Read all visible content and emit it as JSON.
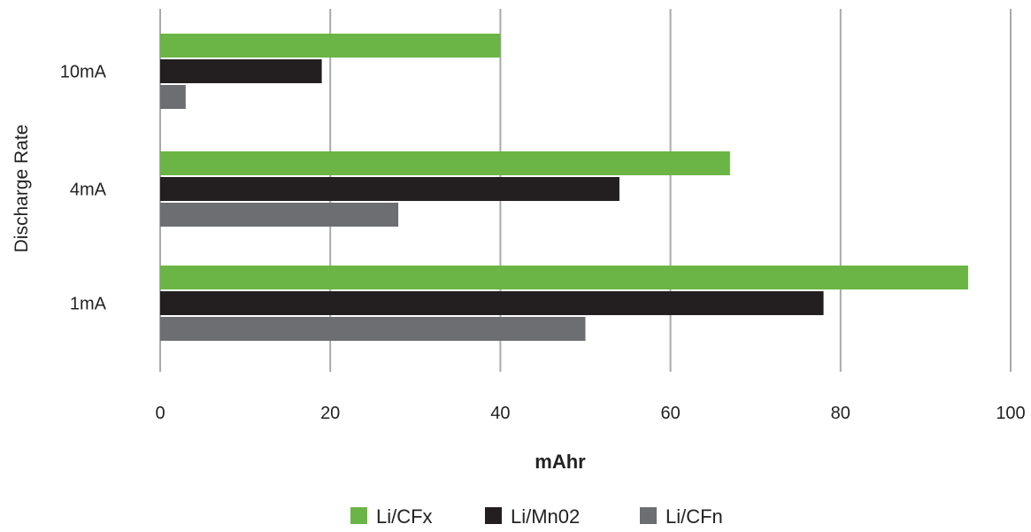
{
  "chart_data": {
    "type": "bar",
    "orientation": "horizontal",
    "title": "",
    "xlabel": "mAhr",
    "ylabel": "Discharge Rate",
    "xlim": [
      0,
      100
    ],
    "x_ticks": [
      "0",
      "20",
      "40",
      "60",
      "80",
      "100"
    ],
    "grid": "vertical",
    "legend_position": "bottom",
    "categories": [
      "10mA",
      "4mA",
      "1mA"
    ],
    "series": [
      {
        "name": "Li/CFx",
        "color": "#6ab545",
        "values": [
          40,
          67,
          95
        ]
      },
      {
        "name": "Li/Mn02",
        "color": "#231f20",
        "values": [
          19,
          54,
          78
        ]
      },
      {
        "name": "Li/CFn",
        "color": "#6d6e71",
        "values": [
          3,
          28,
          50
        ]
      }
    ]
  }
}
